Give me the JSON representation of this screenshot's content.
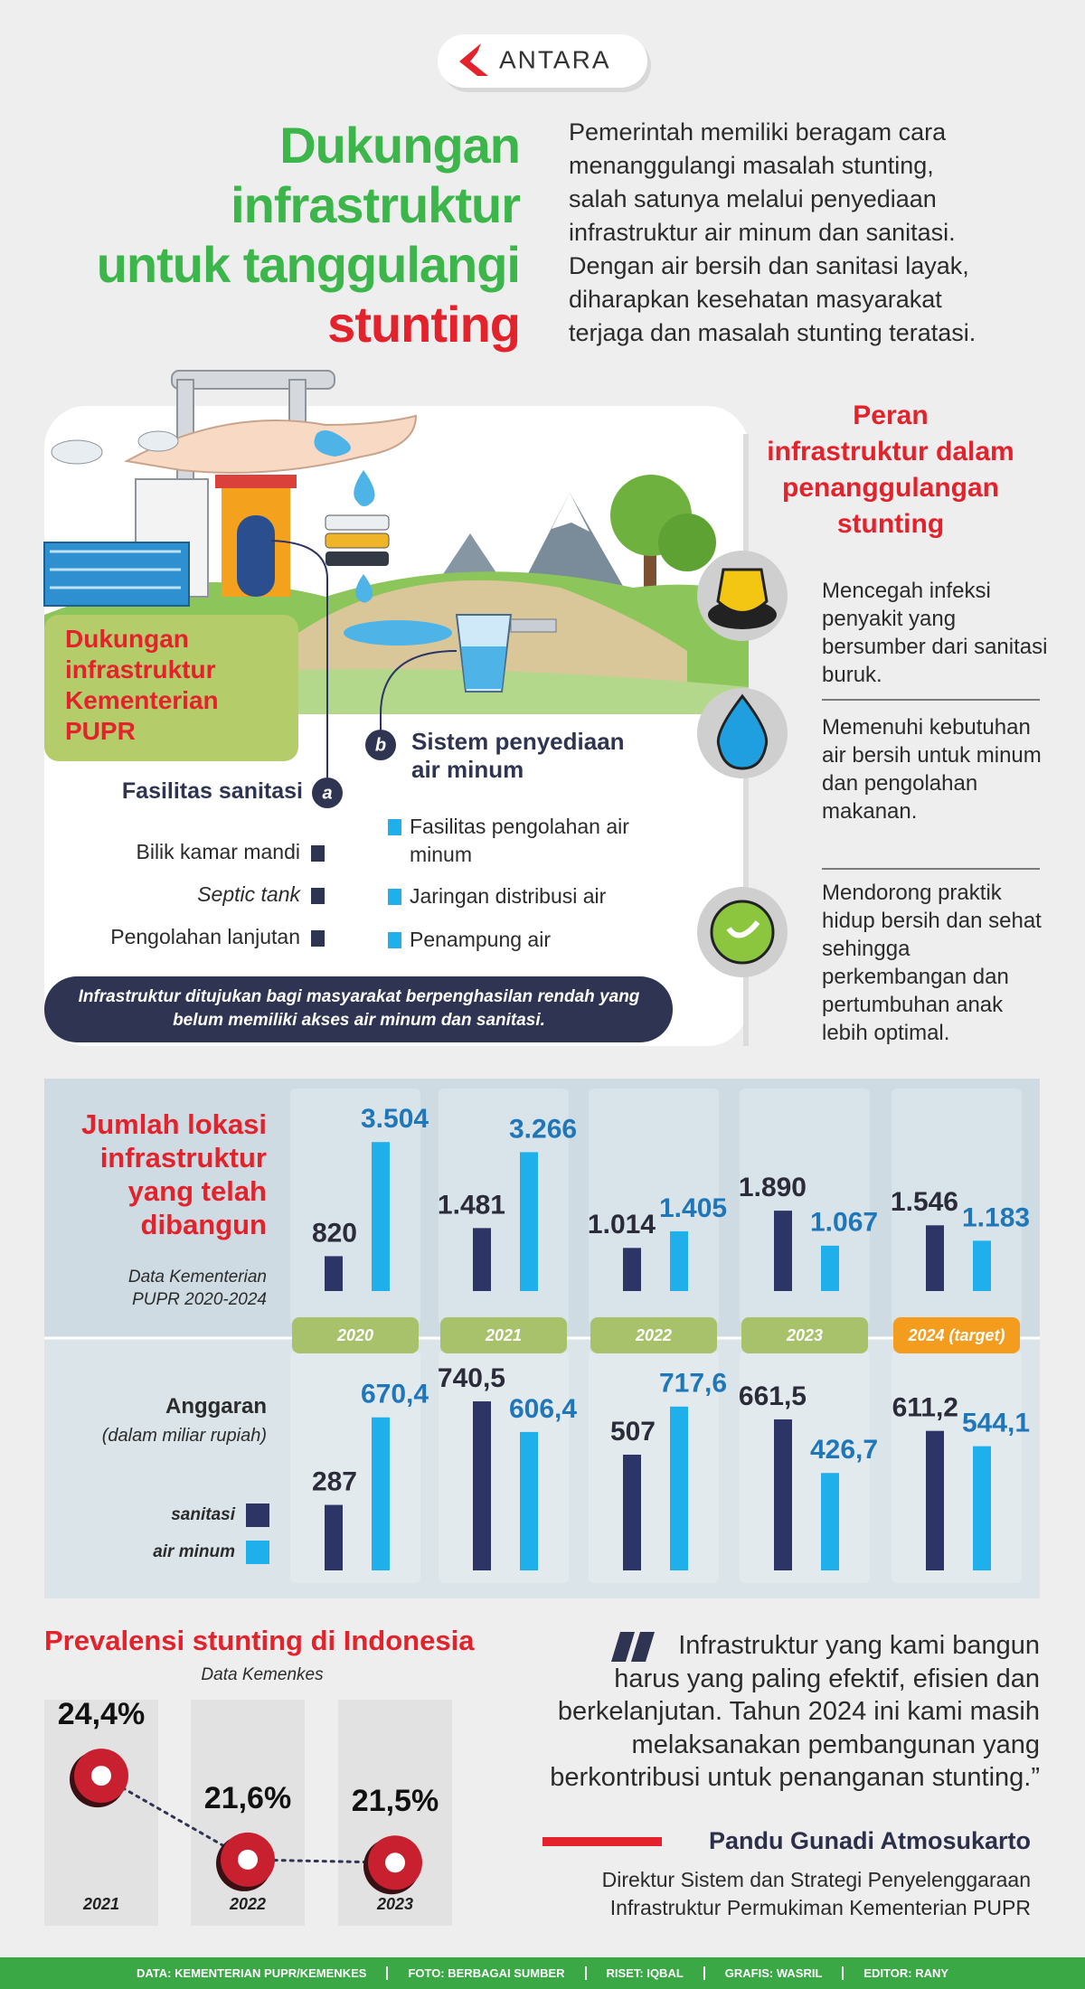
{
  "header": {
    "logo": "ANTARA",
    "title_lines": [
      "Dukungan",
      "infrastruktur",
      "untuk tanggulangi",
      "stunting"
    ],
    "intro_lines": [
      "Pemerintah memiliki beragam cara",
      "menanggulangi masalah stunting,",
      "salah satunya melalui penyediaan",
      "infrastruktur air minum dan sanitasi.",
      "Dengan air bersih dan sanitasi layak,",
      "diharapkan kesehatan masyarakat",
      "terjaga dan masalah stunting teratasi."
    ]
  },
  "dukungan": {
    "title": "Dukungan infrastruktur Kementerian PUPR",
    "a": {
      "badge": "a",
      "title": "Fasilitas sanitasi",
      "items": [
        "Bilik kamar mandi",
        "Septic tank",
        "Pengolahan lanjutan"
      ]
    },
    "b": {
      "badge": "b",
      "title": "Sistem penyediaan air minum",
      "items": [
        "Fasilitas pengolahan air minum",
        "Jaringan distribusi air",
        "Penampung air"
      ]
    },
    "note": "Infrastruktur ditujukan bagi masyarakat berpenghasilan rendah yang belum memiliki akses air minum dan sanitasi."
  },
  "peran": {
    "title_lines": [
      "Peran",
      "infrastruktur dalam",
      "penanggulangan",
      "stunting"
    ],
    "items": [
      "Mencegah infeksi penyakit yang bersumber dari sanitasi buruk.",
      "Memenuhi kebutuhan air bersih untuk minum dan pengolahan makanan.",
      "Mendorong praktik hidup bersih dan sehat sehingga perkembangan dan pertumbuhan anak lebih optimal."
    ]
  },
  "chart_data": [
    {
      "type": "bar",
      "title": "Jumlah lokasi infrastruktur yang telah dibangun",
      "subtitle": "Data Kementerian PUPR 2020-2024",
      "categories": [
        "2020",
        "2021",
        "2022",
        "2023",
        "2024 (target)"
      ],
      "series": [
        {
          "color": "#2c3566",
          "values": [
            820,
            1481,
            1014,
            1890,
            1546
          ],
          "value_labels": [
            "820",
            "1.481",
            "1.014",
            "1.890",
            "1.546"
          ]
        },
        {
          "color": "#1fb0ec",
          "values": [
            3504,
            3266,
            1405,
            1067,
            1183
          ],
          "value_labels": [
            "3.504",
            "3.266",
            "1.405",
            "1.067",
            "1.183"
          ]
        }
      ],
      "ylim": [
        0,
        3700
      ]
    },
    {
      "type": "bar",
      "title": "Anggaran",
      "subtitle": "(dalam miliar rupiah)",
      "series": [
        {
          "name": "sanitasi",
          "color": "#2c3566",
          "values": [
            287,
            740.5,
            507,
            661.5,
            611.2
          ],
          "value_labels": [
            "287",
            "740,5",
            "507",
            "661,5",
            "611,2"
          ]
        },
        {
          "name": "air minum",
          "color": "#1fb0ec",
          "values": [
            670.4,
            606.4,
            717.6,
            426.7,
            544.1
          ],
          "value_labels": [
            "670,4",
            "606,4",
            "717,6",
            "426,7",
            "544,1"
          ]
        }
      ],
      "ylim": [
        0,
        800
      ]
    },
    {
      "type": "line",
      "title": "Prevalensi stunting di Indonesia",
      "subtitle": "Data Kemenkes",
      "categories": [
        "2021",
        "2022",
        "2023"
      ],
      "values": [
        24.4,
        21.6,
        21.5
      ],
      "value_labels": [
        "24,4%",
        "21,6%",
        "21,5%"
      ],
      "color": "#c8202f",
      "ylim": [
        20,
        26
      ]
    }
  ],
  "quote": {
    "lines": [
      "Infrastruktur yang kami bangun",
      "harus yang paling efektif, efisien dan",
      "berkelanjutan. Tahun 2024 ini kami masih",
      "melaksanakan pembangunan yang",
      "berkontribusi untuk penanganan stunting.”"
    ],
    "name": "Pandu Gunadi Atmosukarto",
    "position_lines": [
      "Direktur Sistem dan Strategi Penyelenggaraan",
      "Infrastruktur Permukiman Kementerian PUPR"
    ]
  },
  "footer": [
    "DATA: KEMENTERIAN PUPR/KEMENKES",
    "FOTO: BERBAGAI SUMBER",
    "RISET: IQBAL",
    "GRAFIS: WASRIL",
    "EDITOR: RANY"
  ]
}
